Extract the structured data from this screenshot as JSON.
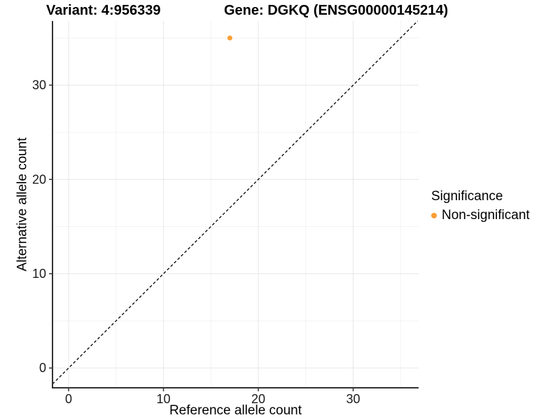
{
  "header": {
    "variant_title": "Variant: 4:956339",
    "gene_title": "Gene: DGKQ (ENSG00000145214)"
  },
  "chart_data": {
    "type": "scatter",
    "titles": [
      "Variant: 4:956339",
      "Gene: DGKQ (ENSG00000145214)"
    ],
    "xlabel": "Reference allele count",
    "ylabel": "Alternative allele count",
    "xlim": [
      -1.7,
      36.9
    ],
    "ylim": [
      -2.1,
      36.8
    ],
    "x_ticks": [
      0,
      10,
      20,
      30
    ],
    "y_ticks": [
      0,
      10,
      20,
      30
    ],
    "x_minor_ticks": [
      5,
      15,
      25,
      35
    ],
    "y_minor_ticks": [
      5,
      15,
      25,
      35
    ],
    "grid": "major and minor gridlines on white panel",
    "reference_line": {
      "type": "identity y=x",
      "style": "dashed",
      "color": "#000000"
    },
    "series": [
      {
        "name": "Non-significant",
        "color": "#FA9E33",
        "points": [
          {
            "x": 17,
            "y": 35
          }
        ]
      }
    ],
    "legend": {
      "title": "Significance",
      "position": "right",
      "items": [
        {
          "label": "Non-significant",
          "color": "#FA9E33"
        }
      ]
    }
  },
  "colors": {
    "grid_major": "#E7E7E7",
    "grid_minor": "#F3F3F3",
    "axis_line": "#333333",
    "background": "#FFFFFF"
  }
}
